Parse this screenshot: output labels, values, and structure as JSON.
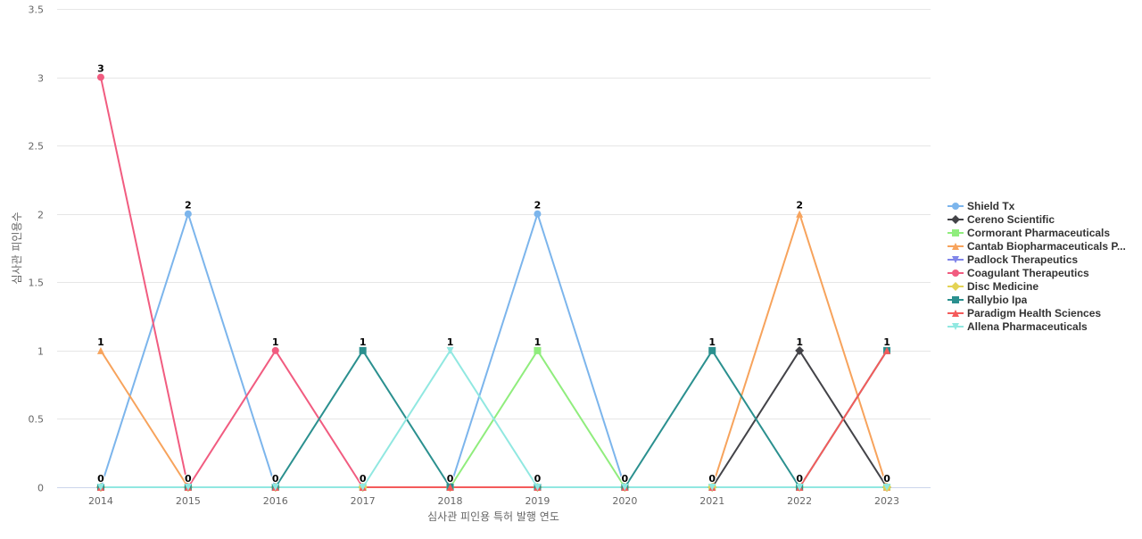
{
  "chart_data": {
    "type": "line",
    "title": "",
    "xlabel": "심사관 피인용 특허 발행 연도",
    "ylabel": "심사관 피인용수",
    "categories": [
      "2014",
      "2015",
      "2016",
      "2017",
      "2018",
      "2019",
      "2020",
      "2021",
      "2022",
      "2023"
    ],
    "ylim": [
      0,
      3.5
    ],
    "yticks": [
      "0",
      "0.5",
      "1",
      "1.5",
      "2",
      "2.5",
      "3",
      "3.5"
    ],
    "grid": true,
    "legend_position": "right",
    "series": [
      {
        "name": "Shield Tx",
        "color": "#7cb5ec",
        "marker": "circle",
        "values": [
          0,
          2,
          0,
          0,
          0,
          2,
          0,
          0,
          0,
          0
        ]
      },
      {
        "name": "Cereno Scientific",
        "color": "#434348",
        "marker": "diamond",
        "values": [
          0,
          0,
          0,
          0,
          0,
          0,
          0,
          0,
          1,
          0
        ]
      },
      {
        "name": "Cormorant Pharmaceuticals",
        "color": "#90ed7d",
        "marker": "square",
        "values": [
          0,
          0,
          0,
          0,
          0,
          1,
          0,
          0,
          0,
          0
        ]
      },
      {
        "name": "Cantab Biopharmaceuticals P...",
        "color": "#f7a35c",
        "marker": "triangle",
        "values": [
          1,
          0,
          0,
          0,
          0,
          0,
          0,
          0,
          2,
          0
        ]
      },
      {
        "name": "Padlock Therapeutics",
        "color": "#8085e9",
        "marker": "triangle-down",
        "values": [
          0,
          0,
          0,
          0,
          0,
          0,
          0,
          0,
          0,
          0
        ]
      },
      {
        "name": "Coagulant Therapeutics",
        "color": "#f15c80",
        "marker": "circle",
        "values": [
          3,
          0,
          1,
          0,
          0,
          0,
          null,
          null,
          null,
          null
        ]
      },
      {
        "name": "Disc Medicine",
        "color": "#e4d354",
        "marker": "diamond",
        "values": [
          0,
          0,
          0,
          0,
          0,
          0,
          0,
          0,
          0,
          0
        ]
      },
      {
        "name": "Rallybio Ipa",
        "color": "#2b908f",
        "marker": "square",
        "values": [
          0,
          0,
          0,
          1,
          0,
          0,
          0,
          1,
          0,
          1
        ]
      },
      {
        "name": "Paradigm Health Sciences",
        "color": "#f45b5b",
        "marker": "triangle",
        "values": [
          0,
          0,
          0,
          0,
          0,
          0,
          0,
          0,
          0,
          1
        ]
      },
      {
        "name": "Allena Pharmaceuticals",
        "color": "#91e8e1",
        "marker": "triangle-down",
        "values": [
          0,
          0,
          0,
          0,
          1,
          0,
          0,
          0,
          0,
          0
        ]
      }
    ],
    "data_labels": [
      {
        "x": "2014",
        "y": 3,
        "text": "3"
      },
      {
        "x": "2014",
        "y": 1,
        "text": "1"
      },
      {
        "x": "2014",
        "y": 0,
        "text": "0"
      },
      {
        "x": "2015",
        "y": 2,
        "text": "2"
      },
      {
        "x": "2015",
        "y": 0,
        "text": "0"
      },
      {
        "x": "2016",
        "y": 1,
        "text": "1"
      },
      {
        "x": "2016",
        "y": 0,
        "text": "0"
      },
      {
        "x": "2017",
        "y": 1,
        "text": "1"
      },
      {
        "x": "2017",
        "y": 0,
        "text": "0"
      },
      {
        "x": "2018",
        "y": 1,
        "text": "1"
      },
      {
        "x": "2018",
        "y": 0,
        "text": "0"
      },
      {
        "x": "2019",
        "y": 2,
        "text": "2"
      },
      {
        "x": "2019",
        "y": 1,
        "text": "1"
      },
      {
        "x": "2019",
        "y": 0,
        "text": "0"
      },
      {
        "x": "2020",
        "y": 0,
        "text": "0"
      },
      {
        "x": "2021",
        "y": 1,
        "text": "1"
      },
      {
        "x": "2021",
        "y": 0,
        "text": "0"
      },
      {
        "x": "2022",
        "y": 2,
        "text": "2"
      },
      {
        "x": "2022",
        "y": 1,
        "text": "1"
      },
      {
        "x": "2022",
        "y": 0,
        "text": "0"
      },
      {
        "x": "2023",
        "y": 1,
        "text": "1"
      },
      {
        "x": "2023",
        "y": 0,
        "text": "0"
      }
    ]
  }
}
